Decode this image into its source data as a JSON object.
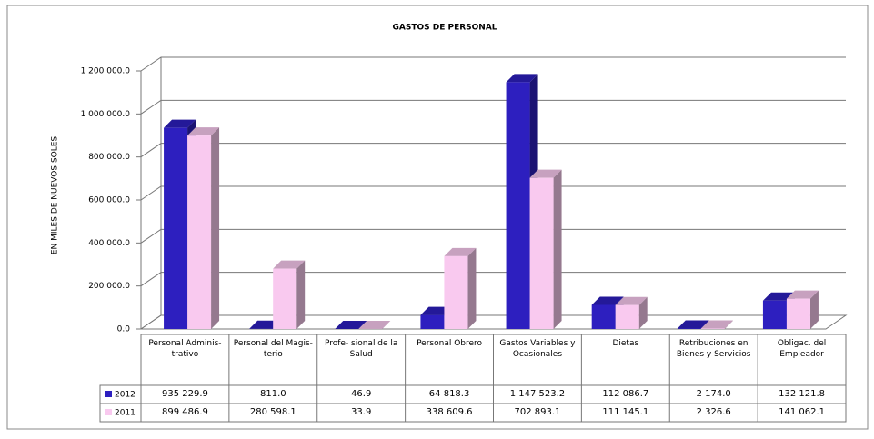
{
  "chart_data": {
    "type": "bar3d",
    "title": "GASTOS DE PERSONAL",
    "y_label": "EN MILES DE NUEVOS SOLES",
    "categories": [
      "Personal Adminis- trativo",
      "Personal del Magis- terio",
      "Profe- sional de la Salud",
      "Personal Obrero",
      "Gastos Variables y Ocasionales",
      "Dietas",
      "Retribuciones en Bienes y Servicios",
      "Obligac. del Empleador"
    ],
    "series": [
      {
        "name": "2012",
        "color": "#2d1fbf",
        "values": [
          935229.9,
          811.0,
          46.9,
          64818.3,
          1147523.2,
          112086.7,
          2174.0,
          132121.8
        ],
        "value_labels": [
          "935 229.9",
          "811.0",
          "46.9",
          "64 818.3",
          "1 147 523.2",
          "112 086.7",
          "2 174.0",
          "132 121.8"
        ]
      },
      {
        "name": "2011",
        "color": "#f9c9ef",
        "values": [
          899486.9,
          280598.1,
          33.9,
          338609.6,
          702893.1,
          111145.1,
          2326.6,
          141062.1
        ],
        "value_labels": [
          "899 486.9",
          "280 598.1",
          "33.9",
          "338 609.6",
          "702 893.1",
          "111 145.1",
          "2 326.6",
          "141 062.1"
        ]
      }
    ],
    "ylim": [
      0,
      1200000
    ],
    "yticks": [
      {
        "value": 0,
        "label": "0.0"
      },
      {
        "value": 200000,
        "label": "200 000.0"
      },
      {
        "value": 400000,
        "label": "400 000.0"
      },
      {
        "value": 600000,
        "label": "600 000.0"
      },
      {
        "value": 800000,
        "label": "800 000.0"
      },
      {
        "value": 1000000,
        "label": "1 000 000.0"
      },
      {
        "value": 1200000,
        "label": "1 200 000.0"
      }
    ],
    "grid": true
  }
}
